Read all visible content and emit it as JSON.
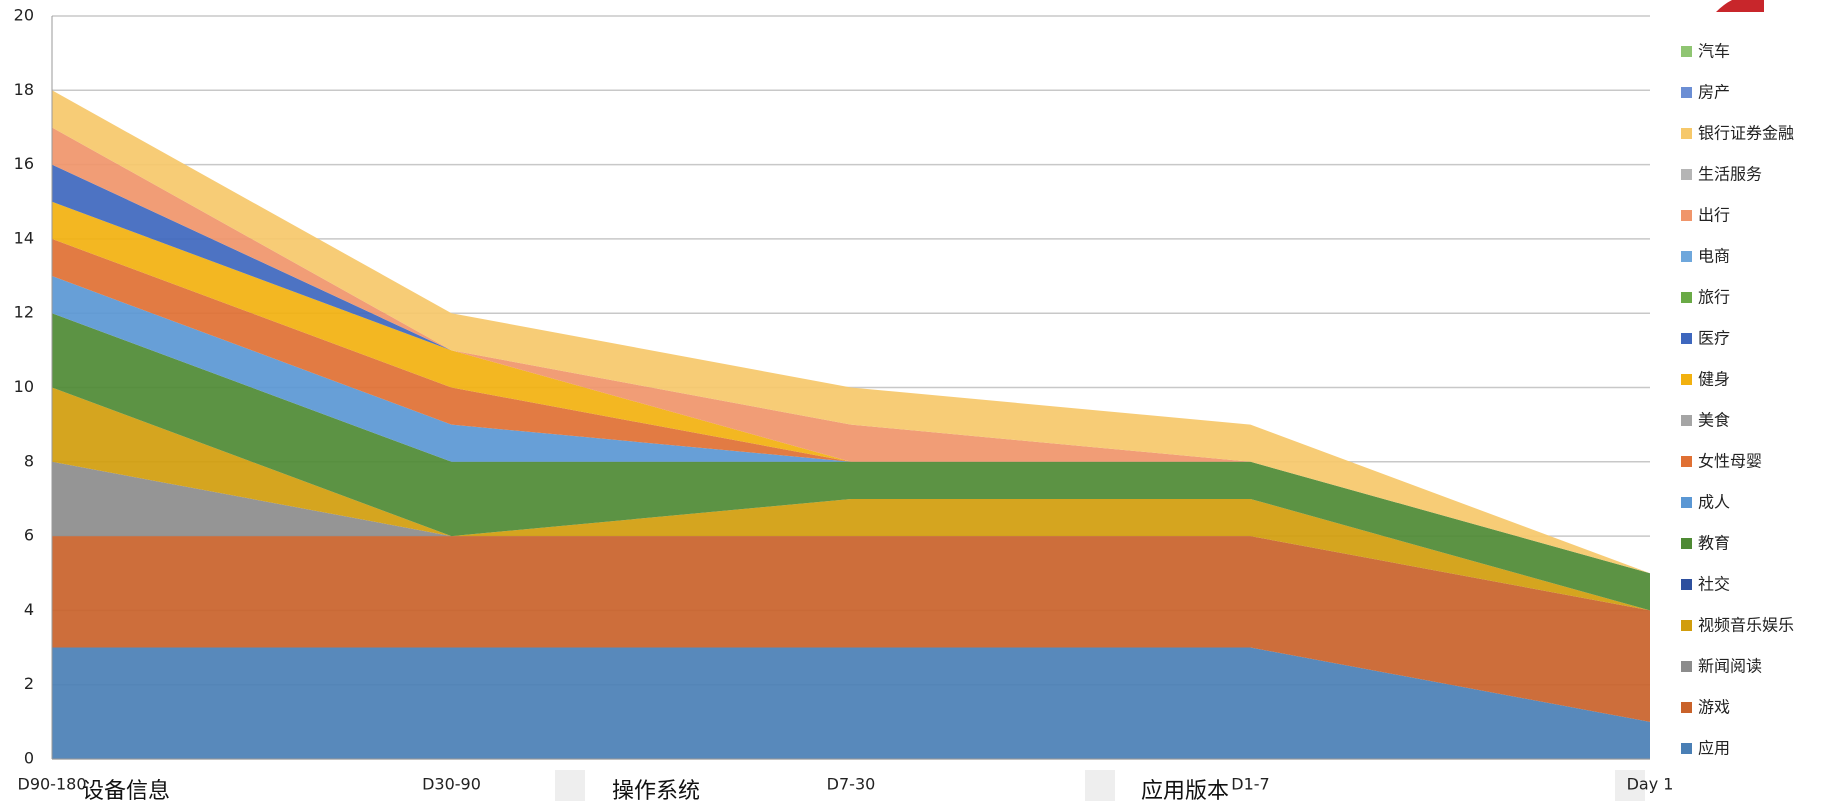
{
  "chart_data": {
    "type": "stacked-area",
    "categories": [
      "D90-180",
      "D30-90",
      "D7-30",
      "D1-7",
      "Day 1"
    ],
    "ylim": [
      0,
      20
    ],
    "yticks": [
      0,
      2,
      4,
      6,
      8,
      10,
      12,
      14,
      16,
      18,
      20
    ],
    "grid": true,
    "legend": "right",
    "series": [
      {
        "name": "应用",
        "color": "#4a7fb5",
        "values": [
          3,
          3,
          3,
          3,
          1
        ]
      },
      {
        "name": "游戏",
        "color": "#c9622a",
        "values": [
          3,
          3,
          3,
          3,
          3
        ]
      },
      {
        "name": "新闻阅读",
        "color": "#8c8c8c",
        "values": [
          2,
          0,
          0,
          0,
          0
        ]
      },
      {
        "name": "视频音乐娱乐",
        "color": "#d19d0c",
        "values": [
          2,
          0,
          1,
          1,
          0
        ]
      },
      {
        "name": "社交",
        "color": "#2d4f9e",
        "values": [
          0,
          0,
          0,
          0,
          0
        ]
      },
      {
        "name": "教育",
        "color": "#4e8a34",
        "values": [
          2,
          2,
          1,
          1,
          1
        ]
      },
      {
        "name": "成人",
        "color": "#5a97d4",
        "values": [
          1,
          1,
          0,
          0,
          0
        ]
      },
      {
        "name": "女性母婴",
        "color": "#e07033",
        "values": [
          1,
          1,
          0,
          0,
          0
        ]
      },
      {
        "name": "美食",
        "color": "#a5a5a5",
        "values": [
          0,
          0,
          0,
          0,
          0
        ]
      },
      {
        "name": "健身",
        "color": "#f2b10f",
        "values": [
          1,
          1,
          0,
          0,
          0
        ]
      },
      {
        "name": "医疗",
        "color": "#3e67be",
        "values": [
          1,
          0,
          0,
          0,
          0
        ]
      },
      {
        "name": "旅行",
        "color": "#6aaa46",
        "values": [
          0,
          0,
          0,
          0,
          0
        ]
      },
      {
        "name": "电商",
        "color": "#6ea7dc",
        "values": [
          0,
          0,
          0,
          0,
          0
        ]
      },
      {
        "name": "出行",
        "color": "#f0956a",
        "values": [
          1,
          0,
          1,
          0,
          0
        ]
      },
      {
        "name": "生活服务",
        "color": "#b5b5b5",
        "values": [
          0,
          0,
          0,
          0,
          0
        ]
      },
      {
        "name": "银行证券金融",
        "color": "#f6c86a",
        "values": [
          1,
          1,
          1,
          1,
          0
        ]
      },
      {
        "name": "房产",
        "color": "#6b8ed4",
        "values": [
          0,
          0,
          0,
          0,
          0
        ]
      },
      {
        "name": "汽车",
        "color": "#8fc572",
        "values": [
          0,
          0,
          0,
          0,
          0
        ]
      }
    ]
  },
  "tabs": [
    "设备信息",
    "操作系统",
    "应用版本"
  ]
}
